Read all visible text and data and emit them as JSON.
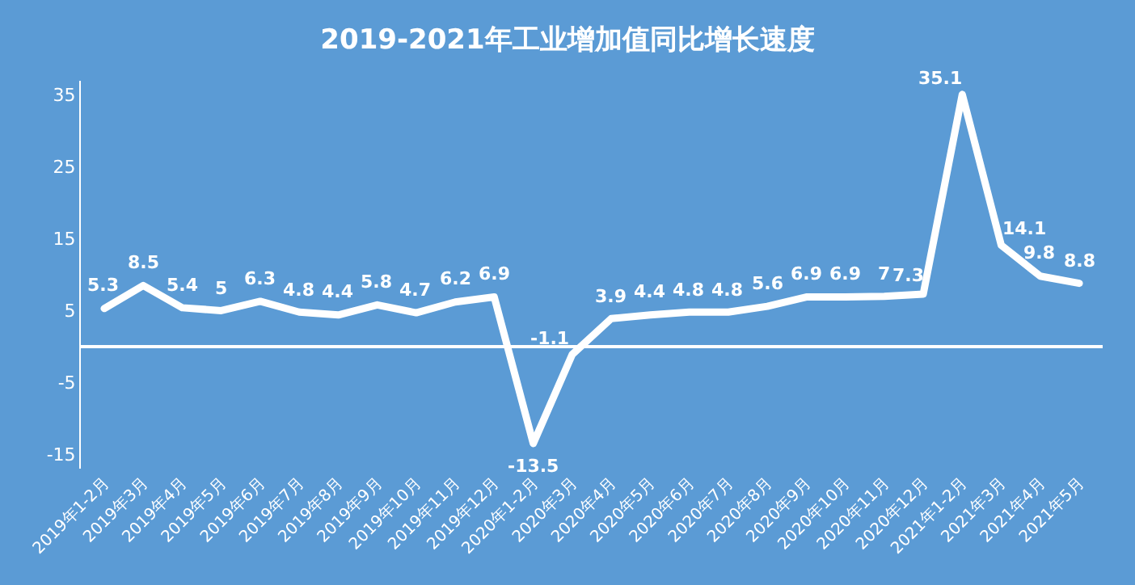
{
  "chart_data": {
    "type": "line",
    "title": "2019-2021年工业增加值同比增长速度",
    "categories": [
      "2019年1-2月",
      "2019年3月",
      "2019年4月",
      "2019年5月",
      "2019年6月",
      "2019年7月",
      "2019年8月",
      "2019年9月",
      "2019年10月",
      "2019年11月",
      "2019年12月",
      "2020年1-2月",
      "2020年3月",
      "2020年4月",
      "2020年5月",
      "2020年6月",
      "2020年7月",
      "2020年8月",
      "2020年9月",
      "2020年10月",
      "2020年11月",
      "2020年12月",
      "2021年1-2月",
      "2021年3月",
      "2021年4月",
      "2021年5月"
    ],
    "series": [
      {
        "color": "#ffffff",
        "values": [
          5.3,
          8.5,
          5.4,
          5,
          6.3,
          4.8,
          4.4,
          5.8,
          4.7,
          6.2,
          6.9,
          -13.5,
          -1.1,
          3.9,
          4.4,
          4.8,
          4.8,
          5.6,
          6.9,
          6.9,
          7,
          7.3,
          35.1,
          14.1,
          9.8,
          8.8
        ]
      }
    ],
    "ylim": [
      -17,
      37
    ],
    "yticks": [
      -15,
      -5,
      5,
      15,
      25,
      35
    ],
    "grid": false,
    "marker": "none",
    "line_style": "solid",
    "data_labels": true
  }
}
